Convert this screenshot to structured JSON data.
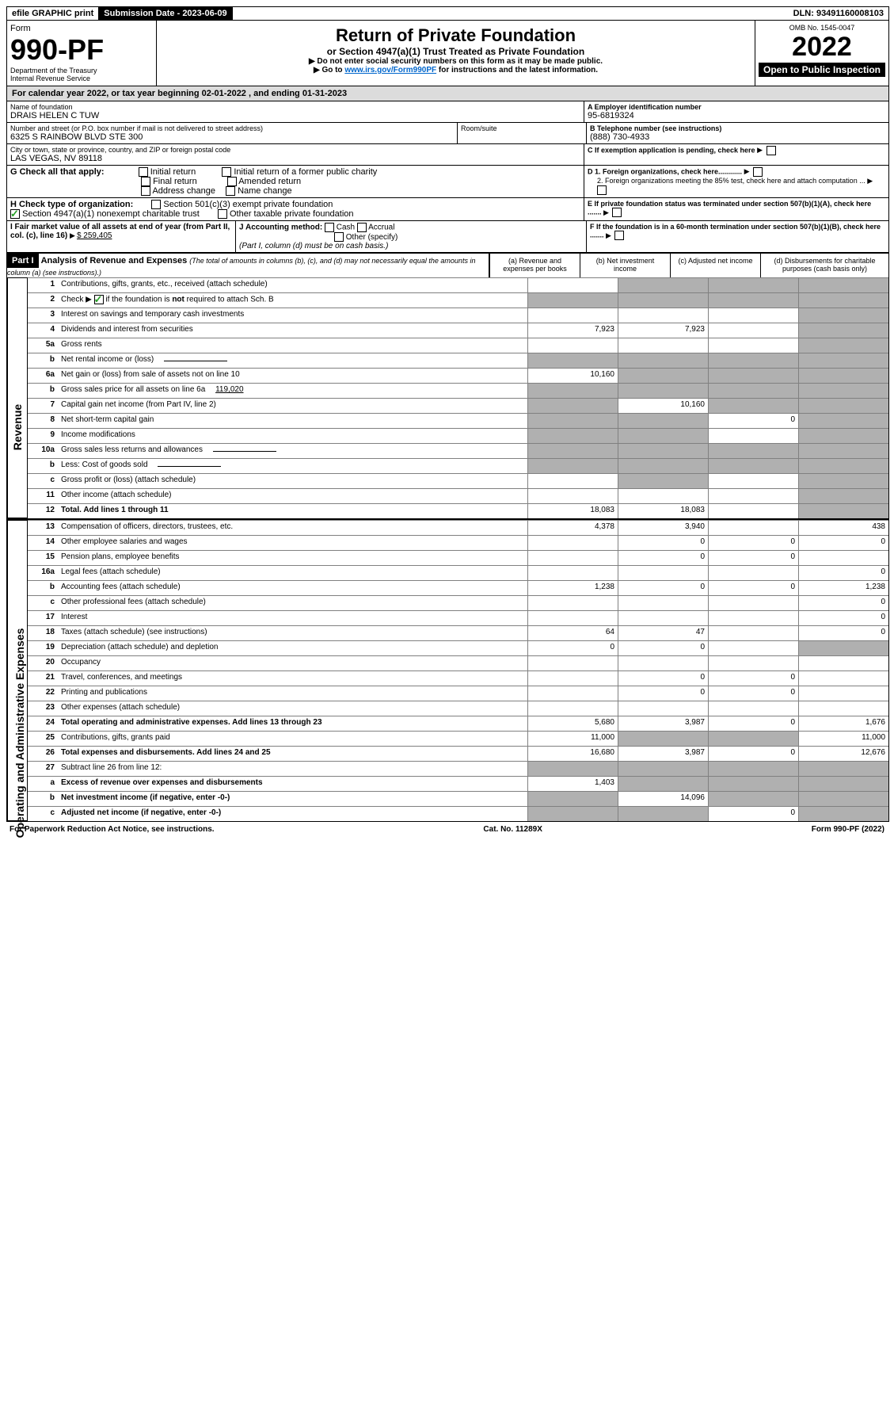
{
  "topbar": {
    "efile": "efile GRAPHIC print",
    "subdate_label": "Submission Date - 2023-06-09",
    "dln": "DLN: 93491160008103"
  },
  "header": {
    "form_word": "Form",
    "form_num": "990-PF",
    "dept": "Department of the Treasury",
    "irs": "Internal Revenue Service",
    "title": "Return of Private Foundation",
    "subtitle": "or Section 4947(a)(1) Trust Treated as Private Foundation",
    "instr1": "▶ Do not enter social security numbers on this form as it may be made public.",
    "instr2_pre": "▶ Go to ",
    "instr2_link": "www.irs.gov/Form990PF",
    "instr2_post": " for instructions and the latest information.",
    "omb": "OMB No. 1545-0047",
    "year": "2022",
    "open": "Open to Public Inspection"
  },
  "cal": {
    "text_pre": "For calendar year 2022, or tax year beginning ",
    "begin": "02-01-2022",
    "mid": " , and ending ",
    "end": "01-31-2023"
  },
  "id": {
    "name_label": "Name of foundation",
    "name": "DRAIS HELEN C TUW",
    "addr_label": "Number and street (or P.O. box number if mail is not delivered to street address)",
    "addr": "6325 S RAINBOW BLVD STE 300",
    "room_label": "Room/suite",
    "city_label": "City or town, state or province, country, and ZIP or foreign postal code",
    "city": "LAS VEGAS, NV  89118",
    "a_label": "A Employer identification number",
    "a_val": "95-6819324",
    "b_label": "B Telephone number (see instructions)",
    "b_val": "(888) 730-4933",
    "c_label": "C If exemption application is pending, check here",
    "d1": "D 1. Foreign organizations, check here............",
    "d2": "2. Foreign organizations meeting the 85% test, check here and attach computation ...",
    "e": "E  If private foundation status was terminated under section 507(b)(1)(A), check here .......",
    "f": "F  If the foundation is in a 60-month termination under section 507(b)(1)(B), check here .......",
    "g_label": "G Check all that apply:",
    "g_opts": [
      "Initial return",
      "Final return",
      "Address change",
      "Initial return of a former public charity",
      "Amended return",
      "Name change"
    ],
    "h_label": "H Check type of organization:",
    "h1": "Section 501(c)(3) exempt private foundation",
    "h2": "Section 4947(a)(1) nonexempt charitable trust",
    "h3": "Other taxable private foundation",
    "i_label": "I Fair market value of all assets at end of year (from Part II, col. (c), line 16)",
    "i_val": "$  259,405",
    "j_label": "J Accounting method:",
    "j_cash": "Cash",
    "j_accrual": "Accrual",
    "j_other": "Other (specify)",
    "j_note": "(Part I, column (d) must be on cash basis.)"
  },
  "part1": {
    "part_label": "Part I",
    "title": "Analysis of Revenue and Expenses",
    "sub": " (The total of amounts in columns (b), (c), and (d) may not necessarily equal the amounts in column (a) (see instructions).)",
    "col_a": "(a) Revenue and expenses per books",
    "col_b": "(b) Net investment income",
    "col_c": "(c) Adjusted net income",
    "col_d": "(d) Disbursements for charitable purposes (cash basis only)"
  },
  "revenue_label": "Revenue",
  "expense_label": "Operating and Administrative Expenses",
  "lines": [
    {
      "n": "1",
      "d": "Contributions, gifts, grants, etc., received (attach schedule)",
      "a": "",
      "b": "dark",
      "c": "dark",
      "dd": "dark"
    },
    {
      "n": "2",
      "d": "Check ▶ ☑ if the foundation is not required to attach Sch. B",
      "a": "dark",
      "b": "dark",
      "c": "dark",
      "dd": "dark",
      "checked": true
    },
    {
      "n": "3",
      "d": "Interest on savings and temporary cash investments",
      "a": "",
      "b": "",
      "c": "",
      "dd": "dark"
    },
    {
      "n": "4",
      "d": "Dividends and interest from securities",
      "a": "7,923",
      "b": "7,923",
      "c": "",
      "dd": "dark"
    },
    {
      "n": "5a",
      "d": "Gross rents",
      "a": "",
      "b": "",
      "c": "",
      "dd": "dark"
    },
    {
      "n": "b",
      "d": "Net rental income or (loss)",
      "a": "dark",
      "b": "dark",
      "c": "dark",
      "dd": "dark",
      "inline": true
    },
    {
      "n": "6a",
      "d": "Net gain or (loss) from sale of assets not on line 10",
      "a": "10,160",
      "b": "dark",
      "c": "dark",
      "dd": "dark"
    },
    {
      "n": "b",
      "d": "Gross sales price for all assets on line 6a",
      "inline_val": "119,020",
      "a": "dark",
      "b": "dark",
      "c": "dark",
      "dd": "dark"
    },
    {
      "n": "7",
      "d": "Capital gain net income (from Part IV, line 2)",
      "a": "dark",
      "b": "10,160",
      "c": "dark",
      "dd": "dark"
    },
    {
      "n": "8",
      "d": "Net short-term capital gain",
      "a": "dark",
      "b": "dark",
      "c": "0",
      "dd": "dark"
    },
    {
      "n": "9",
      "d": "Income modifications",
      "a": "dark",
      "b": "dark",
      "c": "",
      "dd": "dark"
    },
    {
      "n": "10a",
      "d": "Gross sales less returns and allowances",
      "a": "dark",
      "b": "dark",
      "c": "dark",
      "dd": "dark",
      "inline": true
    },
    {
      "n": "b",
      "d": "Less: Cost of goods sold",
      "a": "dark",
      "b": "dark",
      "c": "dark",
      "dd": "dark",
      "inline": true
    },
    {
      "n": "c",
      "d": "Gross profit or (loss) (attach schedule)",
      "a": "",
      "b": "dark",
      "c": "",
      "dd": "dark"
    },
    {
      "n": "11",
      "d": "Other income (attach schedule)",
      "a": "",
      "b": "",
      "c": "",
      "dd": "dark"
    },
    {
      "n": "12",
      "d": "Total. Add lines 1 through 11",
      "a": "18,083",
      "b": "18,083",
      "c": "",
      "dd": "dark",
      "bold": true
    }
  ],
  "exp_lines": [
    {
      "n": "13",
      "d": "Compensation of officers, directors, trustees, etc.",
      "a": "4,378",
      "b": "3,940",
      "c": "",
      "dd": "438"
    },
    {
      "n": "14",
      "d": "Other employee salaries and wages",
      "a": "",
      "b": "0",
      "c": "0",
      "dd": "0"
    },
    {
      "n": "15",
      "d": "Pension plans, employee benefits",
      "a": "",
      "b": "0",
      "c": "0",
      "dd": ""
    },
    {
      "n": "16a",
      "d": "Legal fees (attach schedule)",
      "a": "",
      "b": "",
      "c": "",
      "dd": "0"
    },
    {
      "n": "b",
      "d": "Accounting fees (attach schedule)",
      "a": "1,238",
      "b": "0",
      "c": "0",
      "dd": "1,238"
    },
    {
      "n": "c",
      "d": "Other professional fees (attach schedule)",
      "a": "",
      "b": "",
      "c": "",
      "dd": "0"
    },
    {
      "n": "17",
      "d": "Interest",
      "a": "",
      "b": "",
      "c": "",
      "dd": "0"
    },
    {
      "n": "18",
      "d": "Taxes (attach schedule) (see instructions)",
      "a": "64",
      "b": "47",
      "c": "",
      "dd": "0"
    },
    {
      "n": "19",
      "d": "Depreciation (attach schedule) and depletion",
      "a": "0",
      "b": "0",
      "c": "",
      "dd": "dark"
    },
    {
      "n": "20",
      "d": "Occupancy",
      "a": "",
      "b": "",
      "c": "",
      "dd": ""
    },
    {
      "n": "21",
      "d": "Travel, conferences, and meetings",
      "a": "",
      "b": "0",
      "c": "0",
      "dd": ""
    },
    {
      "n": "22",
      "d": "Printing and publications",
      "a": "",
      "b": "0",
      "c": "0",
      "dd": ""
    },
    {
      "n": "23",
      "d": "Other expenses (attach schedule)",
      "a": "",
      "b": "",
      "c": "",
      "dd": ""
    },
    {
      "n": "24",
      "d": "Total operating and administrative expenses. Add lines 13 through 23",
      "a": "5,680",
      "b": "3,987",
      "c": "0",
      "dd": "1,676",
      "bold": true
    },
    {
      "n": "25",
      "d": "Contributions, gifts, grants paid",
      "a": "11,000",
      "b": "dark",
      "c": "dark",
      "dd": "11,000"
    },
    {
      "n": "26",
      "d": "Total expenses and disbursements. Add lines 24 and 25",
      "a": "16,680",
      "b": "3,987",
      "c": "0",
      "dd": "12,676",
      "bold": true
    },
    {
      "n": "27",
      "d": "Subtract line 26 from line 12:",
      "a": "dark",
      "b": "dark",
      "c": "dark",
      "dd": "dark"
    },
    {
      "n": "a",
      "d": "Excess of revenue over expenses and disbursements",
      "a": "1,403",
      "b": "dark",
      "c": "dark",
      "dd": "dark",
      "bold": true
    },
    {
      "n": "b",
      "d": "Net investment income (if negative, enter -0-)",
      "a": "dark",
      "b": "14,096",
      "c": "dark",
      "dd": "dark",
      "bold": true
    },
    {
      "n": "c",
      "d": "Adjusted net income (if negative, enter -0-)",
      "a": "dark",
      "b": "dark",
      "c": "0",
      "dd": "dark",
      "bold": true
    }
  ],
  "footer": {
    "left": "For Paperwork Reduction Act Notice, see instructions.",
    "mid": "Cat. No. 11289X",
    "right": "Form 990-PF (2022)"
  }
}
